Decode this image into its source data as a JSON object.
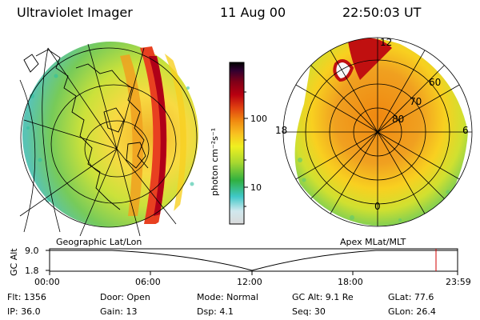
{
  "header": {
    "instrument": "Ultraviolet Imager",
    "date": "11 Aug 00",
    "time": "22:50:03 UT"
  },
  "colorbar": {
    "unit_label": "photon cm⁻²s⁻¹",
    "ticks": [
      "100",
      "10"
    ],
    "colors": [
      "#d9d9d9",
      "#d0e8ee",
      "#40c8c8",
      "#30b040",
      "#a8d830",
      "#f0f020",
      "#f8c020",
      "#f08810",
      "#e04010",
      "#b80010",
      "#800018",
      "#300030",
      "#000000"
    ]
  },
  "left_map": {
    "label": "Geographic Lat/Lon"
  },
  "right_map": {
    "label": "Apex MLat/MLT",
    "mlt_labels": {
      "top": "12",
      "left": "18",
      "right": "6",
      "bottom": "0"
    },
    "lat_labels": [
      "60",
      "70",
      "80"
    ]
  },
  "altitude_plot": {
    "ylabel": "GC Alt",
    "yticks": [
      "9.0",
      "1.8"
    ],
    "xticks": [
      "00:00",
      "06:00",
      "12:00",
      "18:00",
      "23:59"
    ],
    "marker_color": "#d00000"
  },
  "info": {
    "flt": "Flt: 1356",
    "door": "Door: Open",
    "mode": "Mode: Normal",
    "gc_alt": "GC Alt: 9.1 Re",
    "glat": "GLat:  77.6",
    "ip": "IP: 36.0",
    "gain": "Gain: 13",
    "dsp": "Dsp:     4.1",
    "seq": "Seq: 30",
    "glon": "GLon:  26.4"
  }
}
